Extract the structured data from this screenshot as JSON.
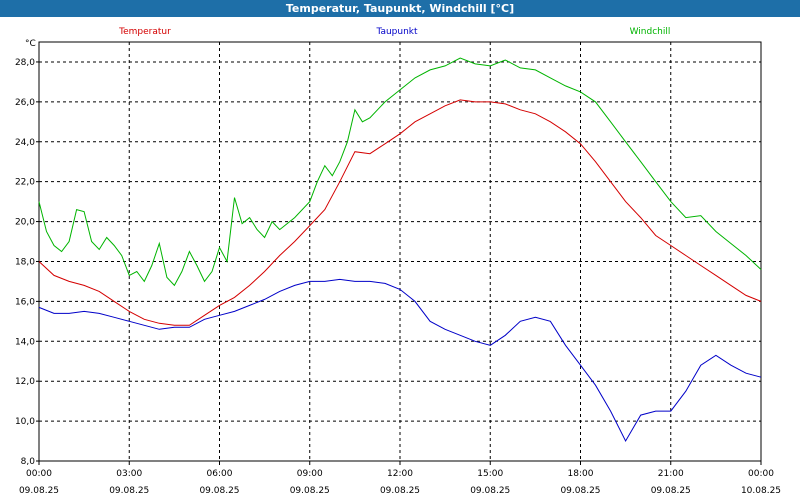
{
  "title": "Temperatur, Taupunkt, Windchill [°C]",
  "colors": {
    "titlebar": "#1e6fa8",
    "temperature": "#d40000",
    "dewpoint": "#0000c8",
    "windchill": "#00b400",
    "grid": "#000000"
  },
  "chart_data": {
    "type": "line",
    "title": "Temperatur, Taupunkt, Windchill [°C]",
    "ylabel": "°C",
    "ylim": [
      8,
      29
    ],
    "xlim_hours": [
      0,
      24
    ],
    "y_ticks": [
      "8,0",
      "10,0",
      "12,0",
      "14,0",
      "16,0",
      "18,0",
      "20,0",
      "22,0",
      "24,0",
      "26,0",
      "28,0"
    ],
    "x_ticks": [
      {
        "time": "00:00",
        "date": "09.08.25"
      },
      {
        "time": "03:00",
        "date": "09.08.25"
      },
      {
        "time": "06:00",
        "date": "09.08.25"
      },
      {
        "time": "09:00",
        "date": "09.08.25"
      },
      {
        "time": "12:00",
        "date": "09.08.25"
      },
      {
        "time": "15:00",
        "date": "09.08.25"
      },
      {
        "time": "18:00",
        "date": "09.08.25"
      },
      {
        "time": "21:00",
        "date": "09.08.25"
      },
      {
        "time": "00:00",
        "date": "10.08.25"
      }
    ],
    "grid": true,
    "legend_placement": "top",
    "series": [
      {
        "name": "Temperatur",
        "x": [
          0,
          0.5,
          1,
          1.5,
          2,
          2.5,
          3,
          3.5,
          4,
          4.5,
          5,
          5.5,
          6,
          6.5,
          7,
          7.5,
          8,
          8.5,
          9,
          9.5,
          10,
          10.5,
          11,
          11.5,
          12,
          12.5,
          13,
          13.5,
          14,
          14.5,
          15,
          15.5,
          16,
          16.5,
          17,
          17.5,
          18,
          18.5,
          19,
          19.5,
          20,
          20.5,
          21,
          21.5,
          22,
          22.5,
          23,
          23.5,
          24
        ],
        "y": [
          18.0,
          17.3,
          17.0,
          16.8,
          16.5,
          16.0,
          15.5,
          15.1,
          14.9,
          14.8,
          14.8,
          15.3,
          15.8,
          16.2,
          16.8,
          17.5,
          18.3,
          19.0,
          19.8,
          20.6,
          22.0,
          23.5,
          23.4,
          23.9,
          24.4,
          25.0,
          25.4,
          25.8,
          26.1,
          26.0,
          26.0,
          25.9,
          25.6,
          25.4,
          25.0,
          24.5,
          23.9,
          23.0,
          22.0,
          21.0,
          20.2,
          19.3,
          18.8,
          18.3,
          17.8,
          17.3,
          16.8,
          16.3,
          16.0
        ]
      },
      {
        "name": "Taupunkt",
        "x": [
          0,
          0.5,
          1,
          1.5,
          2,
          2.5,
          3,
          3.5,
          4,
          4.5,
          5,
          5.5,
          6,
          6.5,
          7,
          7.5,
          8,
          8.5,
          9,
          9.5,
          10,
          10.5,
          11,
          11.5,
          12,
          12.5,
          13,
          13.5,
          14,
          14.5,
          15,
          15.5,
          16,
          16.5,
          17,
          17.5,
          18,
          18.5,
          19,
          19.5,
          20,
          20.5,
          21,
          21.5,
          22,
          22.5,
          23,
          23.5,
          24
        ],
        "y": [
          15.7,
          15.4,
          15.4,
          15.5,
          15.4,
          15.2,
          15.0,
          14.8,
          14.6,
          14.7,
          14.7,
          15.1,
          15.3,
          15.5,
          15.8,
          16.1,
          16.5,
          16.8,
          17.0,
          17.0,
          17.1,
          17.0,
          17.0,
          16.9,
          16.6,
          16.0,
          15.0,
          14.6,
          14.3,
          14.0,
          13.8,
          14.3,
          15.0,
          15.2,
          15.0,
          13.8,
          12.8,
          11.8,
          10.5,
          9.0,
          10.3,
          10.5,
          10.5,
          11.5,
          12.8,
          13.3,
          12.8,
          12.4,
          12.2
        ]
      },
      {
        "name": "Windchill",
        "x": [
          0,
          0.25,
          0.5,
          0.75,
          1,
          1.25,
          1.5,
          1.75,
          2,
          2.25,
          2.5,
          2.75,
          3,
          3.25,
          3.5,
          3.75,
          4,
          4.25,
          4.5,
          4.75,
          5,
          5.25,
          5.5,
          5.75,
          6,
          6.25,
          6.5,
          6.75,
          7,
          7.25,
          7.5,
          7.75,
          8,
          8.5,
          9,
          9.25,
          9.5,
          9.75,
          10,
          10.25,
          10.5,
          10.75,
          11,
          11.5,
          12,
          12.5,
          13,
          13.5,
          14,
          14.5,
          15,
          15.5,
          16,
          16.5,
          17,
          17.5,
          18,
          18.5,
          19,
          19.5,
          20,
          20.5,
          21,
          21.5,
          22,
          22.5,
          23,
          23.5,
          24
        ],
        "y": [
          21.0,
          19.5,
          18.8,
          18.5,
          19.0,
          20.6,
          20.5,
          19.0,
          18.6,
          19.2,
          18.8,
          18.3,
          17.3,
          17.5,
          17.0,
          17.8,
          18.9,
          17.2,
          16.8,
          17.5,
          18.5,
          17.8,
          17.0,
          17.5,
          18.7,
          18.0,
          21.2,
          19.9,
          20.2,
          19.6,
          19.2,
          20.0,
          19.6,
          20.2,
          21.0,
          22.0,
          22.8,
          22.3,
          23.0,
          24.0,
          25.6,
          25.0,
          25.2,
          26.0,
          26.6,
          27.2,
          27.6,
          27.8,
          28.2,
          27.9,
          27.8,
          28.1,
          27.7,
          27.6,
          27.2,
          26.8,
          26.5,
          26.0,
          25.0,
          24.0,
          23.0,
          22.0,
          21.0,
          20.2,
          20.3,
          19.5,
          18.9,
          18.3,
          17.6
        ]
      }
    ]
  }
}
